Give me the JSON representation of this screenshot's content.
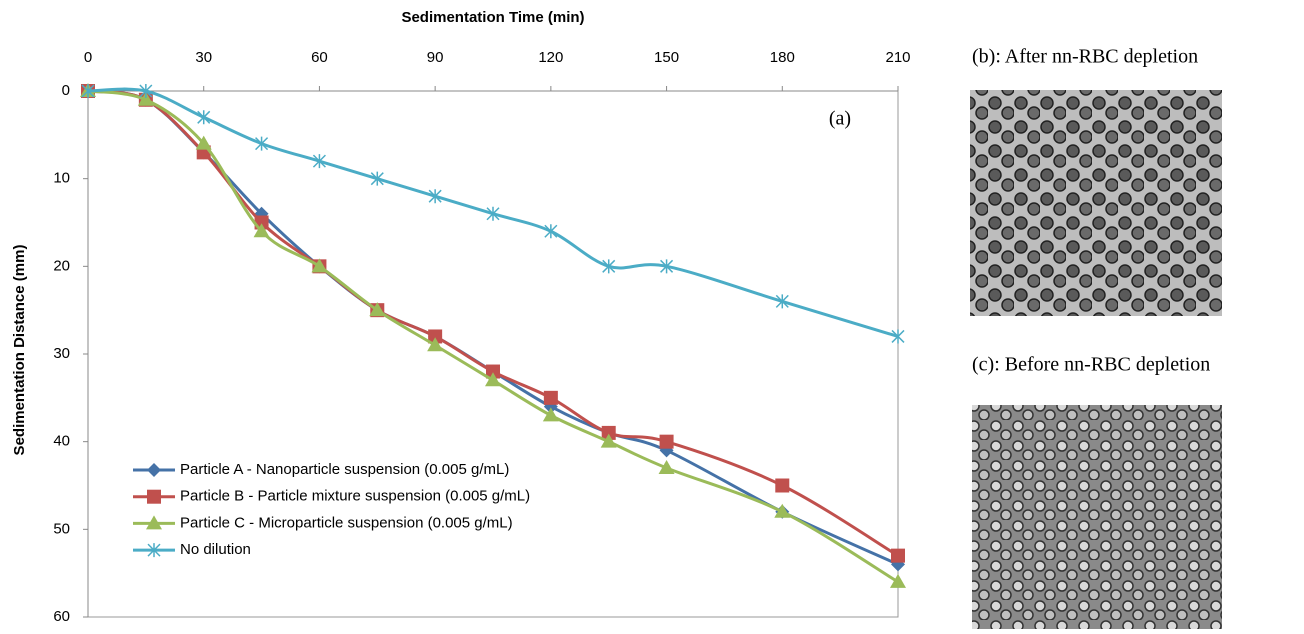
{
  "chart_data": {
    "type": "line",
    "title": "Sedimentation Time (min)",
    "y_label": "Sedimentation Distance (mm)",
    "annotation": "(a)",
    "x": [
      0,
      15,
      30,
      45,
      60,
      75,
      90,
      105,
      120,
      135,
      150,
      180,
      210
    ],
    "xlim": [
      0,
      210
    ],
    "xticks": [
      0,
      30,
      60,
      90,
      120,
      150,
      180,
      210
    ],
    "ylim": [
      0,
      60
    ],
    "yticks": [
      0,
      10,
      20,
      30,
      40,
      50,
      60
    ],
    "y_reversed": true,
    "x_axis_position": "top",
    "legend": "lower left",
    "series": [
      {
        "name": "Particle A - Nanoparticle suspension (0.005 g/mL)",
        "color": "#4572A7",
        "marker": "diamond",
        "values": [
          0,
          1,
          7,
          14,
          20,
          25,
          28,
          32,
          36,
          39,
          41,
          48,
          54
        ]
      },
      {
        "name": "Particle B - Particle mixture suspension (0.005 g/mL)",
        "color": "#C0504D",
        "marker": "square",
        "values": [
          0,
          1,
          7,
          15,
          20,
          25,
          28,
          32,
          35,
          39,
          40,
          45,
          53
        ]
      },
      {
        "name": "Particle C - Microparticle suspension (0.005 g/mL)",
        "color": "#9BBB59",
        "marker": "triangle",
        "values": [
          0,
          1,
          6,
          16,
          20,
          25,
          29,
          33,
          37,
          40,
          43,
          48,
          56
        ]
      },
      {
        "name": "No dilution",
        "color": "#4BACC6",
        "marker": "asterisk",
        "values": [
          0,
          0,
          3,
          6,
          8,
          10,
          12,
          14,
          16,
          20,
          20,
          24,
          28
        ]
      }
    ]
  },
  "panels": [
    {
      "label": "(b): After nn-RBC depletion"
    },
    {
      "label": "(c): Before nn-RBC depletion"
    }
  ]
}
